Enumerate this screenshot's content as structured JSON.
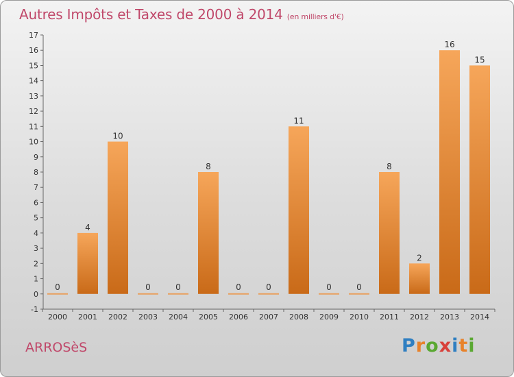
{
  "title": "Autres Impôts et Taxes de 2000 à 2014",
  "subtitle": "(en milliers d'€)",
  "commune": "ARROSèS",
  "brand": {
    "letters": [
      "P",
      "r",
      "o",
      "x",
      "i",
      "t",
      "i"
    ],
    "colors": [
      "#2f7fc1",
      "#e8822a",
      "#5aa832",
      "#d8403a",
      "#2f7fc1",
      "#e8822a",
      "#5aa832"
    ]
  },
  "colors": {
    "text": "#c0486a",
    "bar_light": "#f6a65a",
    "bar_dark": "#c96a18"
  },
  "chart_data": {
    "type": "bar",
    "categories": [
      "2000",
      "2001",
      "2002",
      "2003",
      "2004",
      "2005",
      "2006",
      "2007",
      "2008",
      "2009",
      "2010",
      "2011",
      "2012",
      "2013",
      "2014"
    ],
    "values": [
      0,
      4,
      10,
      0,
      0,
      8,
      0,
      0,
      11,
      0,
      0,
      8,
      2,
      16,
      15
    ],
    "ylim": [
      -1,
      17
    ],
    "yticks": [
      -1,
      0,
      1,
      2,
      3,
      4,
      5,
      6,
      7,
      8,
      9,
      10,
      11,
      12,
      13,
      14,
      15,
      16,
      17
    ],
    "grid": false,
    "xlabel": "",
    "ylabel": ""
  }
}
